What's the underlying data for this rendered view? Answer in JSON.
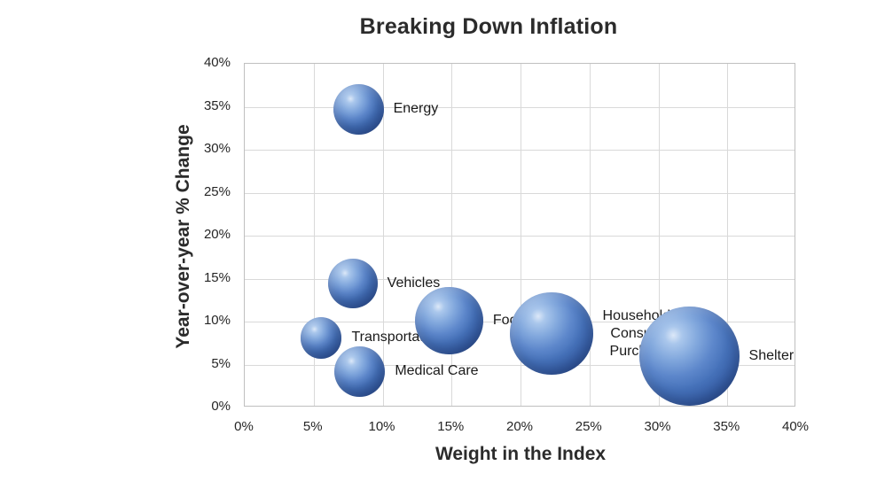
{
  "chart_data": {
    "type": "scatter",
    "subtype": "bubble",
    "title": "Breaking Down Inflation",
    "xlabel": "Weight in the Index",
    "ylabel": "Year-over-year % Change",
    "xlim": [
      0,
      40
    ],
    "ylim": [
      0,
      40
    ],
    "x_tick_labels": [
      "0%",
      "5%",
      "10%",
      "15%",
      "20%",
      "25%",
      "30%",
      "35%",
      "40%"
    ],
    "y_tick_labels": [
      "0%",
      "5%",
      "10%",
      "15%",
      "20%",
      "25%",
      "30%",
      "35%",
      "40%"
    ],
    "grid": true,
    "legend": false,
    "size_encoding": "bubble area proportional to weight in the index (x value)",
    "points": [
      {
        "name": "Energy",
        "label": "Energy",
        "x": 8.3,
        "y": 34.6
      },
      {
        "name": "Vehicles",
        "label": "Vehicles",
        "x": 7.9,
        "y": 14.3
      },
      {
        "name": "Transportation",
        "label": "Transportation",
        "x": 5.6,
        "y": 8.0
      },
      {
        "name": "Medical Care",
        "label": "Medical Care",
        "x": 8.4,
        "y": 4.1
      },
      {
        "name": "Food",
        "label": "Food",
        "x": 14.9,
        "y": 10.0
      },
      {
        "name": "Household & Consumer Purchases",
        "label": "Household &\nConsumer\nPurchases",
        "x": 22.3,
        "y": 8.5
      },
      {
        "name": "Shelter",
        "label": "Shelter",
        "x": 32.3,
        "y": 5.9
      }
    ]
  },
  "style": {
    "bubble_color": "#4472c4",
    "bubble_highlight": "#aac7ec",
    "bubble_shadow": "#2f5195",
    "grid_color": "#d9d9d9",
    "axis_border_color": "#bfbfbf",
    "text_color": "#1f1f1f",
    "title_color": "#2b2b2b",
    "background": "#ffffff"
  }
}
